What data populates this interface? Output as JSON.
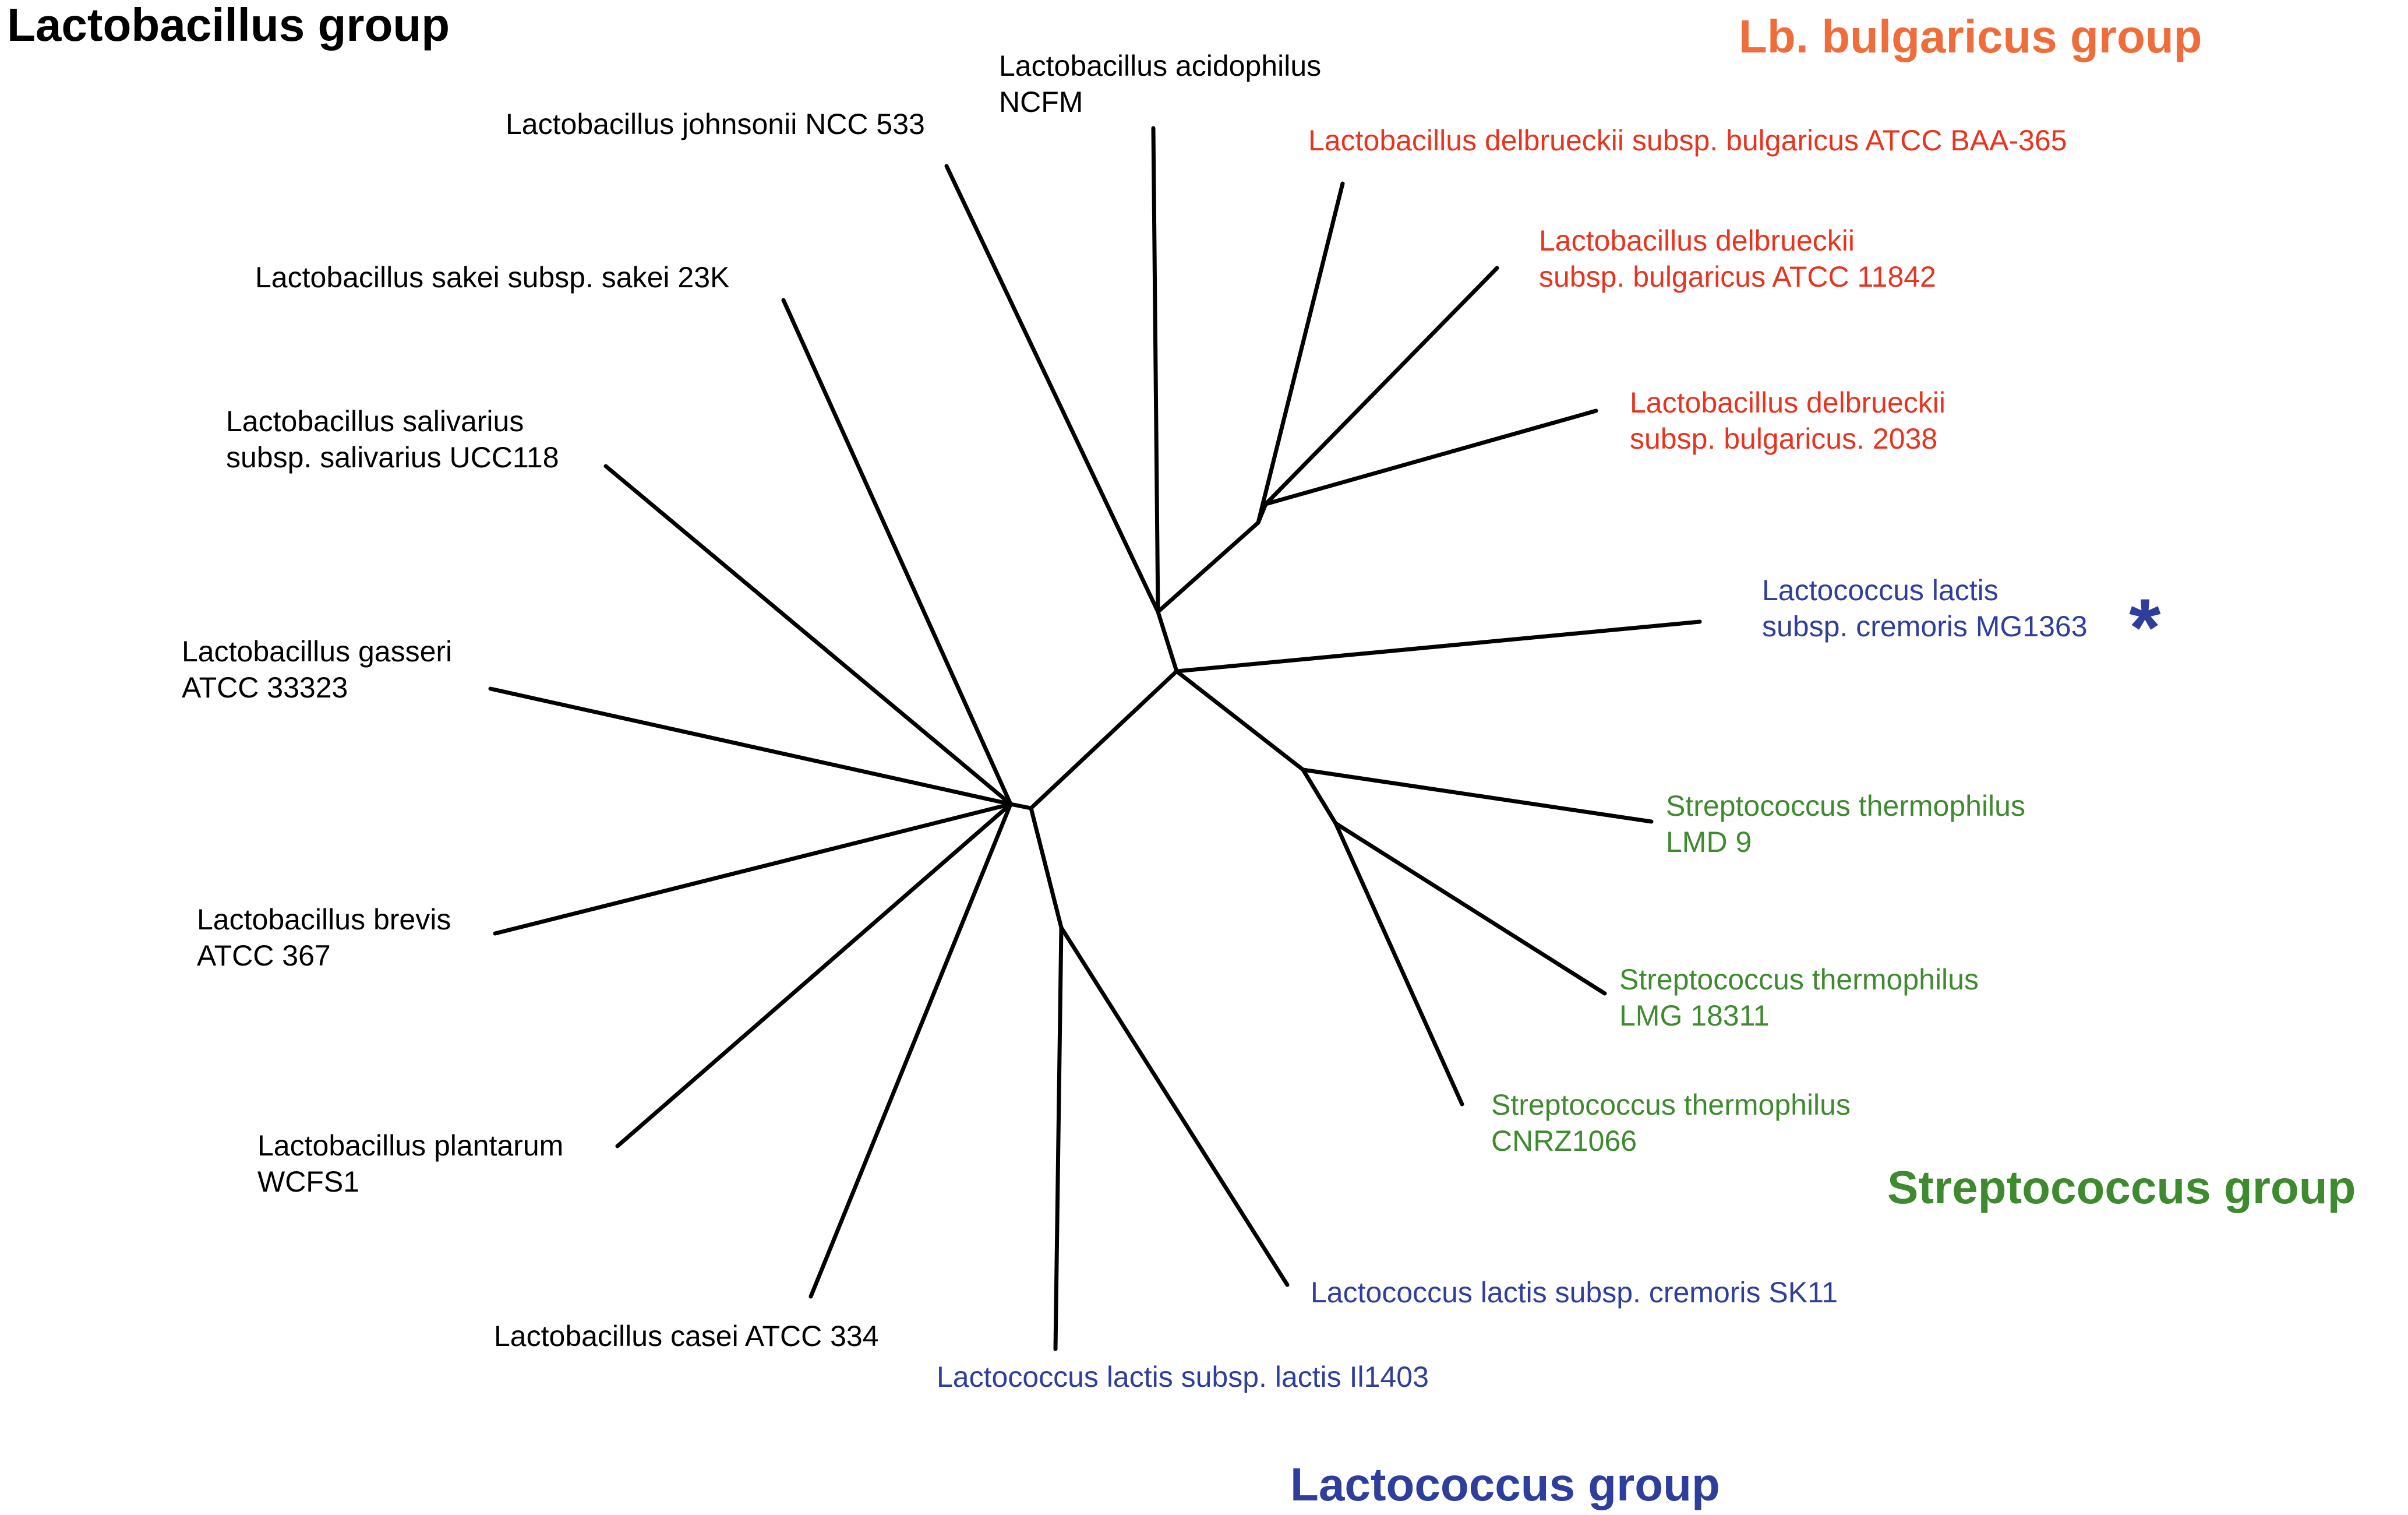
{
  "colors": {
    "branch": "#000000",
    "lactobacillus": "#000000",
    "bulgaricus_title": "#EE6D3A",
    "bulgaricus_taxa": "#E8331E",
    "lactococcus": "#2E3E9C",
    "streptococcus": "#3E8A2E"
  },
  "groups": {
    "lactobacillus": "Lactobacillus group",
    "bulgaricus": "Lb. bulgaricus group",
    "streptococcus": "Streptococcus group",
    "lactococcus": "Lactococcus group"
  },
  "taxa": {
    "acidophilus": [
      "Lactobacillus acidophilus",
      "NCFM"
    ],
    "johnsonii": [
      "Lactobacillus johnsonii NCC 533"
    ],
    "sakei": [
      "Lactobacillus sakei subsp. sakei 23K"
    ],
    "salivarius": [
      "Lactobacillus salivarius",
      "subsp. salivarius UCC118"
    ],
    "gasseri": [
      "Lactobacillus gasseri",
      "ATCC 33323"
    ],
    "brevis": [
      "Lactobacillus brevis",
      "ATCC 367"
    ],
    "plantarum": [
      "Lactobacillus plantarum",
      "WCFS1"
    ],
    "casei": [
      "Lactobacillus casei ATCC 334"
    ],
    "bulgaricus_baa365": [
      "Lactobacillus delbrueckii subsp. bulgaricus ATCC BAA-365"
    ],
    "bulgaricus_11842": [
      "Lactobacillus delbrueckii",
      "subsp. bulgaricus ATCC 11842"
    ],
    "bulgaricus_2038": [
      "Lactobacillus delbrueckii",
      "subsp. bulgaricus. 2038"
    ],
    "cremoris_mg1363": [
      "Lactococcus lactis",
      "subsp. cremoris MG1363"
    ],
    "thermophilus_lmd9": [
      "Streptococcus thermophilus",
      "LMD 9"
    ],
    "thermophilus_lmg18311": [
      "Streptococcus thermophilus",
      "LMG 18311"
    ],
    "thermophilus_cnrz1066": [
      "Streptococcus thermophilus",
      "CNRZ1066"
    ],
    "cremoris_sk11": [
      "Lactococcus lactis subsp. cremoris SK11"
    ],
    "lactis_il1403": [
      "Lactococcus lactis subsp. lactis Il1403"
    ]
  },
  "marker": "*"
}
